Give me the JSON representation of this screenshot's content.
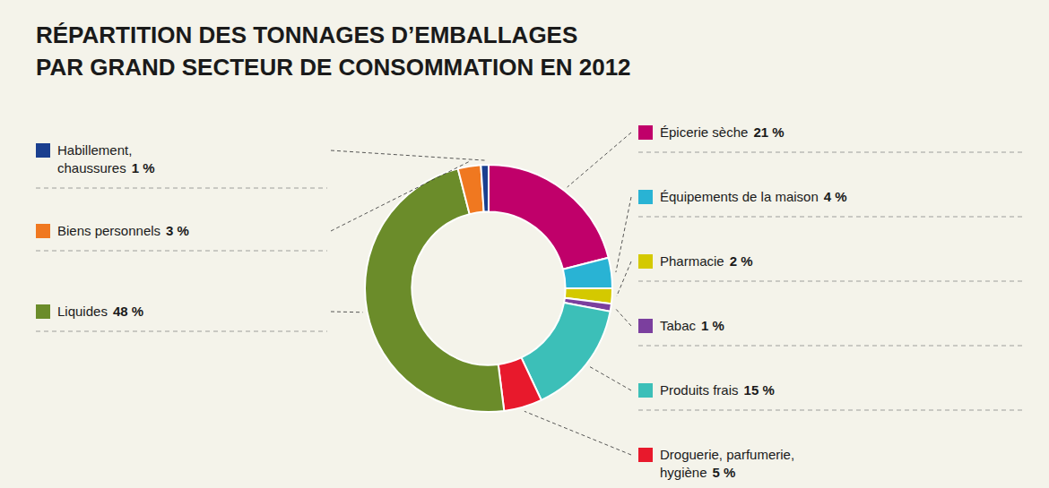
{
  "chart_data": {
    "type": "donut",
    "title": "RÉPARTITION DES TONNAGES D’EMBALLAGES",
    "subtitle": "PAR GRAND SECTEUR DE CONSOMMATION EN 2012",
    "categories": [
      "Épicerie sèche",
      "Équipements de la maison",
      "Pharmacie",
      "Tabac",
      "Produits frais",
      "Droguerie, parfumerie,\nhygiène",
      "Liquides",
      "Biens personnels",
      "Habillement,\nchaussures"
    ],
    "values": [
      21,
      4,
      2,
      1,
      15,
      5,
      48,
      3,
      1
    ],
    "value_labels": [
      "21 %",
      "4 %",
      "2 %",
      "1 %",
      "15 %",
      "5 %",
      "48 %",
      "3 %",
      "1 %"
    ],
    "colors": [
      "#c0006a",
      "#29b3d4",
      "#d4c900",
      "#7b3f9e",
      "#3cbfb8",
      "#e8192c",
      "#6b8c2a",
      "#f07820",
      "#1a3f8f"
    ],
    "data_labels": true
  }
}
